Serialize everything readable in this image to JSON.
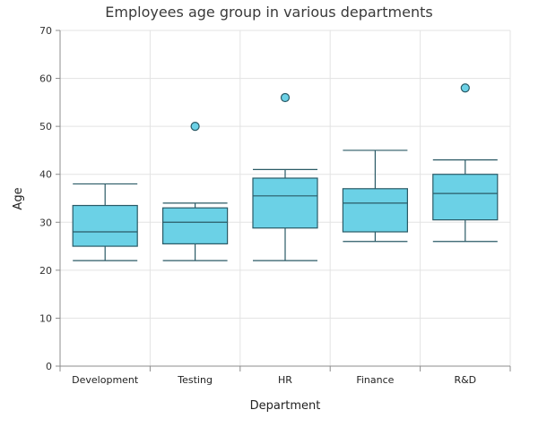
{
  "chart_data": {
    "type": "box",
    "title": "Employees age group in various departments",
    "xlabel": "Department",
    "ylabel": "Age",
    "ylim": [
      0,
      70
    ],
    "yticks": [
      0,
      10,
      20,
      30,
      40,
      50,
      60,
      70
    ],
    "grid": true,
    "categories": [
      "Development",
      "Testing",
      "HR",
      "Finance",
      "R&D"
    ],
    "boxes": [
      {
        "category": "Development",
        "min": 22,
        "q1": 25,
        "median": 28,
        "q3": 33.5,
        "max": 38,
        "outliers": []
      },
      {
        "category": "Testing",
        "min": 22,
        "q1": 25.5,
        "median": 30,
        "q3": 33,
        "max": 34,
        "outliers": [
          50
        ]
      },
      {
        "category": "HR",
        "min": 22,
        "q1": 28.8,
        "median": 35.5,
        "q3": 39.2,
        "max": 41,
        "outliers": [
          56
        ]
      },
      {
        "category": "Finance",
        "min": 26,
        "q1": 28,
        "median": 34,
        "q3": 37,
        "max": 45,
        "outliers": []
      },
      {
        "category": "R&D",
        "min": 26,
        "q1": 30.5,
        "median": 36,
        "q3": 40,
        "max": 43,
        "outliers": [
          58
        ]
      }
    ],
    "colors": {
      "box_fill": "#6bd1e6",
      "box_stroke": "#2a5a66",
      "outlier_fill": "#6bd1e6",
      "grid": "#e3e3e3",
      "axis": "#8c8c8c"
    }
  }
}
